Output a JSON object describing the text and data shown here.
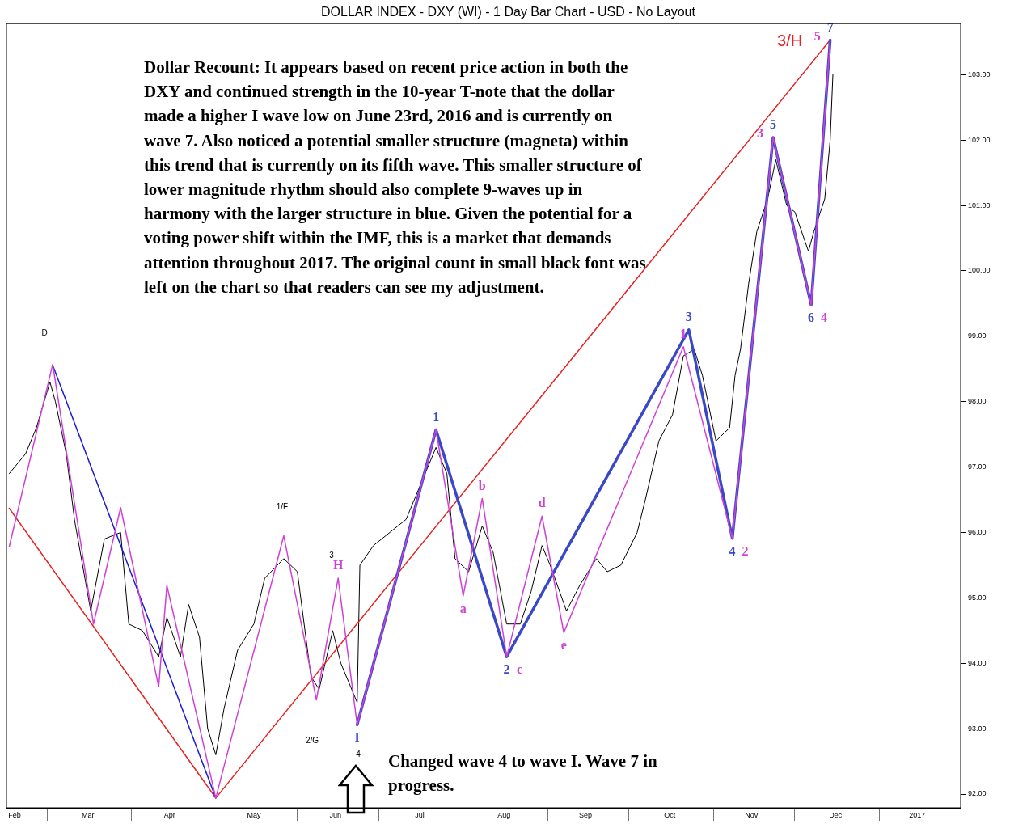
{
  "chart_data": {
    "type": "line",
    "title": "DOLLAR INDEX - DXY (WI) - 1 Day Bar Chart - USD - No Layout",
    "marker": "none",
    "xlim": [
      "2016-02-15",
      "2017-01-31"
    ],
    "xticks": [
      {
        "value": "2016-02-18",
        "label": "Feb"
      },
      {
        "value": "2016-03-01",
        "label": null
      },
      {
        "value": "2016-03-16",
        "label": "Mar"
      },
      {
        "value": "2016-04-01",
        "label": null
      },
      {
        "value": "2016-04-15",
        "label": "Apr"
      },
      {
        "value": "2016-05-01",
        "label": null
      },
      {
        "value": "2016-05-16",
        "label": "May"
      },
      {
        "value": "2016-06-01",
        "label": null
      },
      {
        "value": "2016-06-15",
        "label": "Jun"
      },
      {
        "value": "2016-07-01",
        "label": null
      },
      {
        "value": "2016-07-16",
        "label": "Jul"
      },
      {
        "value": "2016-08-01",
        "label": null
      },
      {
        "value": "2016-08-16",
        "label": "Aug"
      },
      {
        "value": "2016-09-01",
        "label": null
      },
      {
        "value": "2016-09-15",
        "label": "Sep"
      },
      {
        "value": "2016-10-01",
        "label": null
      },
      {
        "value": "2016-10-16",
        "label": "Oct"
      },
      {
        "value": "2016-11-01",
        "label": null
      },
      {
        "value": "2016-11-15",
        "label": "Nov"
      },
      {
        "value": "2016-12-01",
        "label": null
      },
      {
        "value": "2016-12-16",
        "label": "Dec"
      },
      {
        "value": "2017-01-01",
        "label": null
      },
      {
        "value": "2017-01-15",
        "label": "2017"
      }
    ],
    "ylim": [
      91.79,
      103.78
    ],
    "yticks": [
      {
        "value": 92,
        "label": "92.00"
      },
      {
        "value": 93,
        "label": "93.00"
      },
      {
        "value": 94,
        "label": "94.00"
      },
      {
        "value": 95,
        "label": "95.00"
      },
      {
        "value": 96,
        "label": "96.00"
      },
      {
        "value": 97,
        "label": "97.00"
      },
      {
        "value": 98,
        "label": "98.00"
      },
      {
        "value": 99,
        "label": "99.00"
      },
      {
        "value": 100,
        "label": "100.00"
      },
      {
        "value": 101,
        "label": "101.00"
      },
      {
        "value": 102,
        "label": "102.00"
      },
      {
        "value": 103,
        "label": "103.00"
      }
    ],
    "series": [
      {
        "type": "line",
        "color": "#000000",
        "x": [
          "2016-02-16",
          "2016-02-22",
          "2016-02-26",
          "2016-03-02",
          "2016-03-04",
          "2016-03-08",
          "2016-03-11",
          "2016-03-17",
          "2016-03-22",
          "2016-03-28",
          "2016-03-31",
          "2016-04-05",
          "2016-04-11",
          "2016-04-14",
          "2016-04-19",
          "2016-04-22",
          "2016-04-26",
          "2016-04-29",
          "2016-05-02",
          "2016-05-05",
          "2016-05-10",
          "2016-05-16",
          "2016-05-20",
          "2016-05-27",
          "2016-06-01",
          "2016-06-06",
          "2016-06-09",
          "2016-06-14",
          "2016-06-17",
          "2016-06-23",
          "2016-06-24",
          "2016-06-29",
          "2016-07-05",
          "2016-07-11",
          "2016-07-15",
          "2016-07-22",
          "2016-07-26",
          "2016-07-29",
          "2016-08-03",
          "2016-08-08",
          "2016-08-12",
          "2016-08-17",
          "2016-08-22",
          "2016-08-26",
          "2016-08-30",
          "2016-09-02",
          "2016-09-08",
          "2016-09-13",
          "2016-09-19",
          "2016-09-23",
          "2016-09-28",
          "2016-10-04",
          "2016-10-07",
          "2016-10-12",
          "2016-10-17",
          "2016-10-21",
          "2016-10-25",
          "2016-10-28",
          "2016-11-02",
          "2016-11-07",
          "2016-11-09",
          "2016-11-11",
          "2016-11-14",
          "2016-11-17",
          "2016-11-21",
          "2016-11-24",
          "2016-11-28",
          "2016-12-01",
          "2016-12-06",
          "2016-12-08",
          "2016-12-12",
          "2016-12-14",
          "2016-12-15"
        ],
        "values": [
          96.9,
          97.2,
          97.6,
          98.3,
          98.0,
          97.2,
          96.2,
          94.8,
          95.9,
          96.0,
          94.6,
          94.5,
          94.1,
          94.7,
          94.1,
          94.9,
          94.4,
          93.0,
          92.6,
          93.3,
          94.2,
          94.6,
          95.3,
          95.6,
          95.4,
          93.8,
          93.6,
          94.5,
          94.0,
          93.4,
          95.5,
          95.8,
          96.0,
          96.2,
          96.6,
          97.3,
          96.9,
          95.6,
          95.4,
          96.1,
          95.7,
          94.6,
          94.6,
          95.1,
          95.8,
          95.5,
          94.8,
          95.2,
          95.6,
          95.4,
          95.5,
          96.0,
          96.5,
          97.4,
          97.8,
          98.7,
          98.8,
          98.4,
          97.4,
          97.6,
          98.4,
          98.8,
          99.8,
          100.6,
          101.1,
          101.7,
          101.0,
          100.9,
          100.3,
          100.6,
          101.1,
          102.0,
          103.0
        ]
      },
      {
        "type": "line",
        "color": "#e82020",
        "x": [
          "2016-02-16",
          "2016-05-02",
          "2016-12-14"
        ],
        "values": [
          96.37,
          91.94,
          103.53
        ]
      },
      {
        "type": "line",
        "color": "#1a1ad8",
        "x": [
          "2016-03-03",
          "2016-05-02"
        ],
        "values": [
          98.56,
          91.94
        ]
      },
      {
        "type": "line",
        "color": "#d040d8",
        "x": [
          "2016-02-16",
          "2016-03-03",
          "2016-03-18",
          "2016-03-28",
          "2016-04-11",
          "2016-04-14",
          "2016-05-02",
          "2016-05-27",
          "2016-06-08",
          "2016-06-16",
          "2016-06-23",
          "2016-07-22",
          "2016-08-01",
          "2016-08-08",
          "2016-08-17",
          "2016-08-30",
          "2016-09-07",
          "2016-10-21",
          "2016-11-08",
          "2016-11-23",
          "2016-12-07",
          "2016-12-14"
        ],
        "values": [
          95.78,
          98.57,
          94.6,
          96.38,
          93.64,
          95.19,
          91.94,
          95.95,
          93.44,
          95.3,
          93.06,
          97.57,
          95.03,
          96.52,
          94.1,
          96.25,
          94.47,
          98.84,
          95.91,
          102.04,
          99.48,
          103.53
        ]
      },
      {
        "type": "line",
        "color": "#3a48c8",
        "x": [
          "2016-06-23",
          "2016-07-22",
          "2016-08-17",
          "2016-10-23",
          "2016-11-08",
          "2016-11-23",
          "2016-12-07",
          "2016-12-14"
        ],
        "values": [
          93.06,
          97.57,
          94.1,
          99.1,
          95.91,
          102.04,
          99.48,
          103.53
        ]
      }
    ],
    "annotations": [
      "Dollar Recount: It appears based on recent price action in both the DXY and continued strength in the 10-year T-note that the dollar made a higher I wave low on June 23rd, 2016 and is currently on wave 7. Also noticed a potential smaller structure (magneta) within this trend that is currently on its fifth wave. This smaller structure of lower magnitude rhythm should also complete 9-waves up in harmony with the larger structure in blue. Given the potential for a voting power shift within the IMF, this is a market that demands attention throughout 2017. The original count in small black font was left on the chart so that readers can see my adjustment.",
      "Changed wave 4 to wave I. Wave 7 in progress.",
      "D",
      "1/F",
      "2/G",
      "3",
      "4",
      {
        "text": "H",
        "x": "2016-06-16",
        "y": 95.3
      },
      {
        "text": "I",
        "x": "2016-06-23",
        "y": 93.06
      },
      {
        "text": "1",
        "x": "2016-07-22",
        "y": 97.57
      },
      {
        "text": "a",
        "x": "2016-08-01",
        "y": 95.03
      },
      {
        "text": "b",
        "x": "2016-08-08",
        "y": 96.52
      },
      {
        "text": "2",
        "x": "2016-08-17",
        "y": 94.1
      },
      {
        "text": "c",
        "x": "2016-08-17",
        "y": 94.1
      },
      {
        "text": "d",
        "x": "2016-08-30",
        "y": 96.25
      },
      {
        "text": "e",
        "x": "2016-09-07",
        "y": 94.47
      },
      {
        "text": "1",
        "x": "2016-10-21",
        "y": 98.84
      },
      {
        "text": "3",
        "x": "2016-10-23",
        "y": 99.1
      },
      {
        "text": "4",
        "x": "2016-11-08",
        "y": 95.91
      },
      {
        "text": "2",
        "x": "2016-11-08",
        "y": 95.91
      },
      {
        "text": "5",
        "x": "2016-11-23",
        "y": 102.04
      },
      {
        "text": "3",
        "x": "2016-11-23",
        "y": 102.04
      },
      {
        "text": "6",
        "x": "2016-12-07",
        "y": 99.48
      },
      {
        "text": "4",
        "x": "2016-12-07",
        "y": 99.48
      },
      {
        "text": "7",
        "x": "2016-12-14",
        "y": 103.53
      },
      {
        "text": "5",
        "x": "2016-12-14",
        "y": 103.53
      },
      {
        "text": "3/H",
        "x": "2016-12-14",
        "y": 103.53
      }
    ]
  }
}
